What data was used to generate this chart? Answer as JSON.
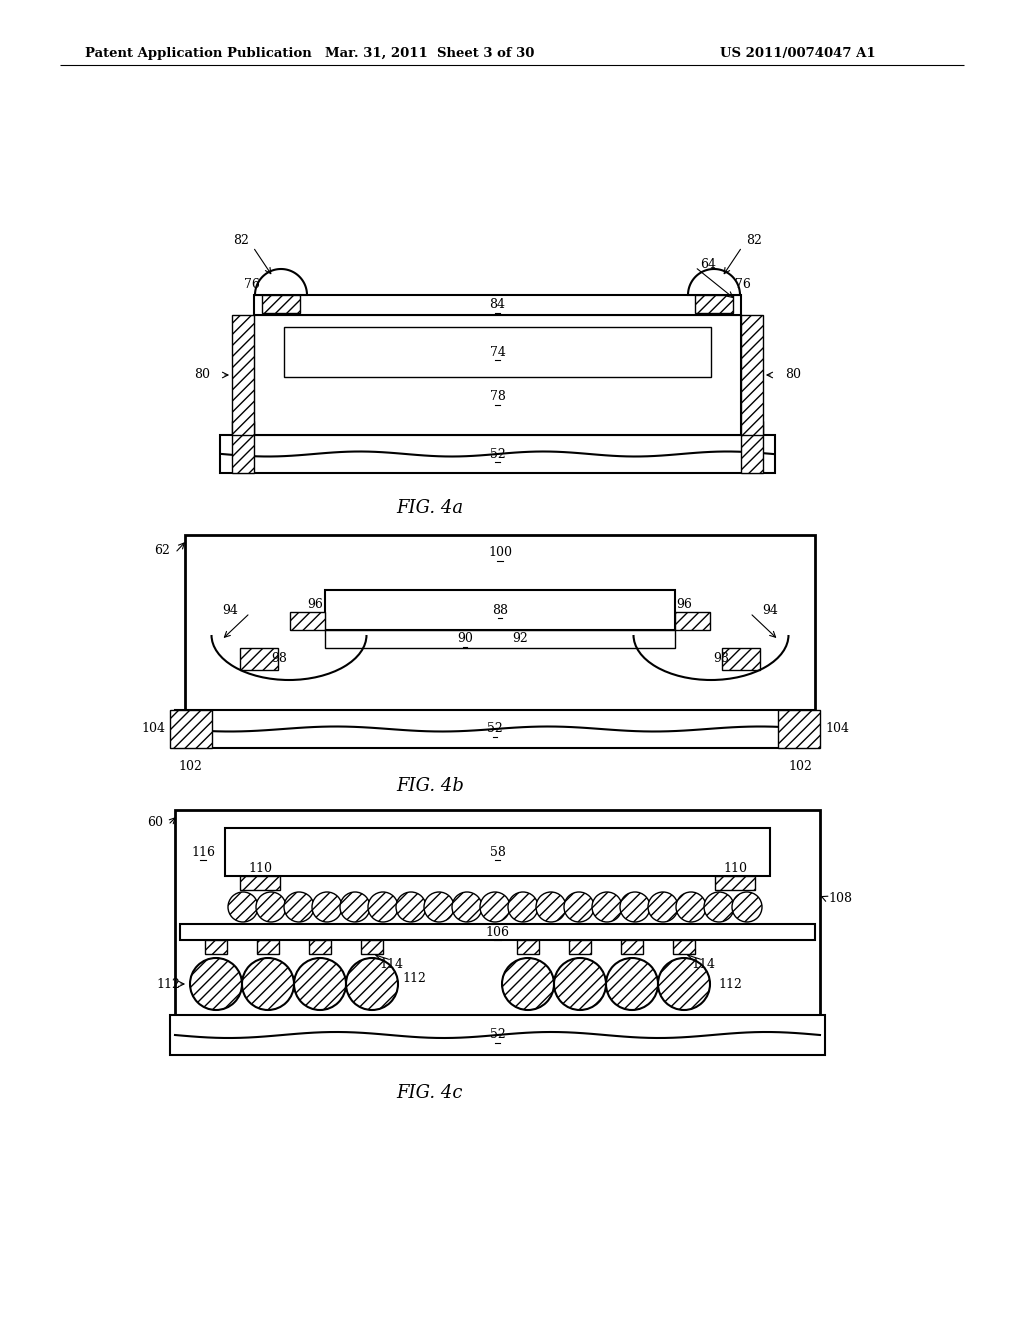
{
  "bg_color": "#ffffff",
  "header_left": "Patent Application Publication",
  "header_mid": "Mar. 31, 2011  Sheet 3 of 30",
  "header_right": "US 2011/0074047 A1",
  "line_color": "#000000"
}
